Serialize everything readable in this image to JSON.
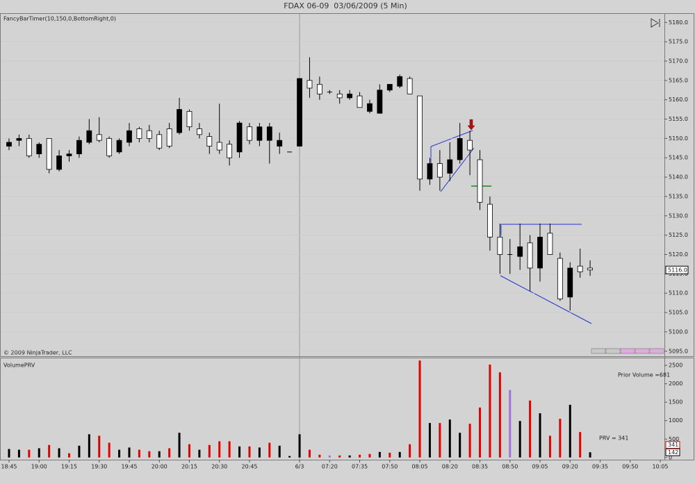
{
  "chart_data": [
    {
      "type": "candlestick",
      "title": "FDAX 06-09  03/06/2009 (5 Min)",
      "indicator_label": "FancyBarTimer(10,150,0,BottomRight,0)",
      "copyright": "© 2009 NinjaTrader, LLC",
      "categories": [
        "18:45",
        null,
        null,
        "19:00",
        null,
        null,
        "19:15",
        null,
        null,
        "19:30",
        null,
        null,
        "19:45",
        null,
        null,
        "20:00",
        null,
        null,
        "20:15",
        null,
        null,
        "20:30",
        null,
        null,
        "20:45",
        null,
        null,
        null,
        null,
        "6/3",
        null,
        null,
        "07:20",
        null,
        null,
        "07:35",
        null,
        null,
        "07:50",
        null,
        null,
        "08:05",
        null,
        null,
        "08:20",
        null,
        null,
        "08:35",
        null,
        null,
        "08:50",
        null,
        null,
        "09:05",
        null,
        null,
        "09:20",
        null,
        null,
        "09:35",
        null,
        null,
        "09:50",
        null,
        null,
        "10:05"
      ],
      "open": [
        5148,
        5149.5,
        5150,
        5146,
        5150,
        5142,
        5145.5,
        5146,
        5149,
        5151,
        5150,
        5146.5,
        5149,
        5152.5,
        5152,
        5151,
        5152.5,
        5151.5,
        5157,
        5152.5,
        5150.5,
        5149,
        5148.5,
        5146.5,
        5153,
        5149.5,
        5149.5,
        5148,
        5146.5,
        5148,
        5165,
        5164,
        5162,
        5161.5,
        5160.5,
        5161,
        5157,
        5156.5,
        5162.5,
        5163.5,
        5165.5,
        5161,
        5139.5,
        5143.5,
        5141,
        5144.5,
        5149.5,
        5144.5,
        5133,
        5124.5,
        5120,
        5119.5,
        5123,
        5116.5,
        5125.5,
        5119,
        5109,
        5117,
        5116.5,
        null,
        null,
        null,
        null,
        null,
        null,
        null
      ],
      "high": [
        5150,
        5151,
        5151,
        5149,
        5150,
        5147,
        5147,
        5150.5,
        5155,
        5155.5,
        5150.5,
        5150,
        5154,
        5153,
        5153.5,
        5152,
        5154,
        5160.5,
        5157.5,
        5154,
        5151.5,
        5159,
        5149.5,
        5154.5,
        5154,
        5154,
        5154,
        5151.5,
        5146.5,
        5165.5,
        5171,
        5166,
        5162.5,
        5162.5,
        5162.5,
        5162,
        5160,
        5164,
        5164,
        5166.5,
        5166,
        5161,
        5145,
        5147,
        5149,
        5154,
        5152,
        5147,
        5135,
        5128,
        5124,
        5128,
        5125,
        5128,
        5128,
        5120.5,
        5118,
        5121.5,
        5118.5,
        null,
        null,
        null,
        null,
        null,
        null,
        null
      ],
      "low": [
        5147,
        5148,
        5145,
        5145,
        5141,
        5141.5,
        5144,
        5145,
        5148.5,
        5149,
        5145,
        5146,
        5148,
        5149,
        5149,
        5147,
        5147.5,
        5151,
        5152,
        5150,
        5146,
        5146,
        5143,
        5145,
        5148.5,
        5148,
        5143.5,
        5146,
        5146.5,
        5148,
        5160.5,
        5160,
        5161.5,
        5159,
        5160,
        5158,
        5156.5,
        5156.5,
        5162,
        5163,
        5161.5,
        5136.5,
        5138,
        5136.5,
        5139,
        5143.5,
        5140.5,
        5131.5,
        5121,
        5115,
        5115,
        5116,
        5110.5,
        5113,
        5120,
        5108,
        5105.5,
        5114,
        5114.5,
        null,
        null,
        null,
        null,
        null,
        null,
        null
      ],
      "close": [
        5149,
        5150,
        5145.5,
        5148.5,
        5142,
        5145.5,
        5146,
        5149.5,
        5152,
        5149.5,
        5145.5,
        5149.5,
        5152,
        5150,
        5150,
        5147.5,
        5148,
        5157.5,
        5153,
        5151,
        5148,
        5147,
        5145,
        5154,
        5149.5,
        5153,
        5153,
        5149.5,
        5146.5,
        5165.5,
        5163,
        5161.5,
        5162,
        5160.5,
        5161.5,
        5158,
        5159,
        5162.5,
        5164,
        5166,
        5161.5,
        5139.5,
        5143.5,
        5140,
        5144.5,
        5150,
        5147,
        5133.5,
        5124.5,
        5120,
        5120,
        5122,
        5116.5,
        5124.5,
        5120,
        5108.5,
        5116.5,
        5115.5,
        5116,
        null,
        null,
        null,
        null,
        null,
        null,
        null
      ],
      "up_color": "#000000",
      "down_color": "#ffffff",
      "ylim": [
        5093.7,
        5182.2
      ],
      "yticks": [
        {
          "value": 5180,
          "label": "5180.0"
        },
        {
          "value": 5175,
          "label": "5175.0"
        },
        {
          "value": 5170,
          "label": "5170.0"
        },
        {
          "value": 5165,
          "label": "5165.0"
        },
        {
          "value": 5160,
          "label": "5160.0"
        },
        {
          "value": 5155,
          "label": "5155.0"
        },
        {
          "value": 5150,
          "label": "5150.0"
        },
        {
          "value": 5145,
          "label": "5145.0"
        },
        {
          "value": 5140,
          "label": "5140.0"
        },
        {
          "value": 5135,
          "label": "5135.0"
        },
        {
          "value": 5130,
          "label": "5130.0"
        },
        {
          "value": 5125,
          "label": "5125.0"
        },
        {
          "value": 5120,
          "label": "5120.0"
        },
        {
          "value": 5115,
          "label": "5115.0"
        },
        {
          "value": 5110,
          "label": "5110.0"
        },
        {
          "value": 5105,
          "label": "5105.0"
        },
        {
          "value": 5100,
          "label": "5100.0"
        },
        {
          "value": 5095,
          "label": "5095.0"
        }
      ],
      "last_price": {
        "value": 5116,
        "label": "5116.0"
      }
    },
    {
      "type": "bar",
      "title": "VolumePRV",
      "values": [
        230,
        210,
        210,
        250,
        340,
        250,
        115,
        320,
        630,
        590,
        400,
        210,
        270,
        210,
        170,
        170,
        250,
        670,
        360,
        210,
        340,
        440,
        440,
        300,
        300,
        270,
        400,
        320,
        40,
        630,
        210,
        75,
        55,
        55,
        55,
        75,
        95,
        150,
        130,
        150,
        360,
        2630,
        935,
        935,
        1030,
        670,
        915,
        1355,
        2520,
        2310,
        1830,
        990,
        1545,
        1200,
        590,
        1050,
        1430,
        690,
        142,
        null,
        null,
        null,
        null,
        null,
        null,
        null
      ],
      "colors": [
        "#000000",
        "#000000",
        "#e00000",
        "#000000",
        "#e00000",
        "#000000",
        "#e00000",
        "#000000",
        "#000000",
        "#e00000",
        "#e00000",
        "#000000",
        "#000000",
        "#e00000",
        "#e00000",
        "#000000",
        "#e00000",
        "#000000",
        "#e00000",
        "#000000",
        "#e00000",
        "#e00000",
        "#e00000",
        "#000000",
        "#e00000",
        "#000000",
        "#e00000",
        "#000000",
        "#000000",
        "#000000",
        "#e00000",
        "#e00000",
        "#a070d8",
        "#e00000",
        "#000000",
        "#e00000",
        "#e00000",
        "#000000",
        "#e00000",
        "#000000",
        "#e00000",
        "#e00000",
        "#000000",
        "#e00000",
        "#000000",
        "#000000",
        "#e00000",
        "#e00000",
        "#e00000",
        "#e00000",
        "#a070d8",
        "#000000",
        "#e00000",
        "#000000",
        "#e00000",
        "#e00000",
        "#000000",
        "#e00000",
        "#000000",
        null,
        null,
        null,
        null,
        null,
        null,
        null
      ],
      "ylim": [
        -60,
        2690
      ],
      "yticks": [
        0,
        500,
        1000,
        1500,
        2000,
        2500
      ],
      "prior_volume_label": "Prior Volume =681",
      "prv_label": "PRV = 341",
      "markers": [
        341,
        142
      ]
    }
  ]
}
